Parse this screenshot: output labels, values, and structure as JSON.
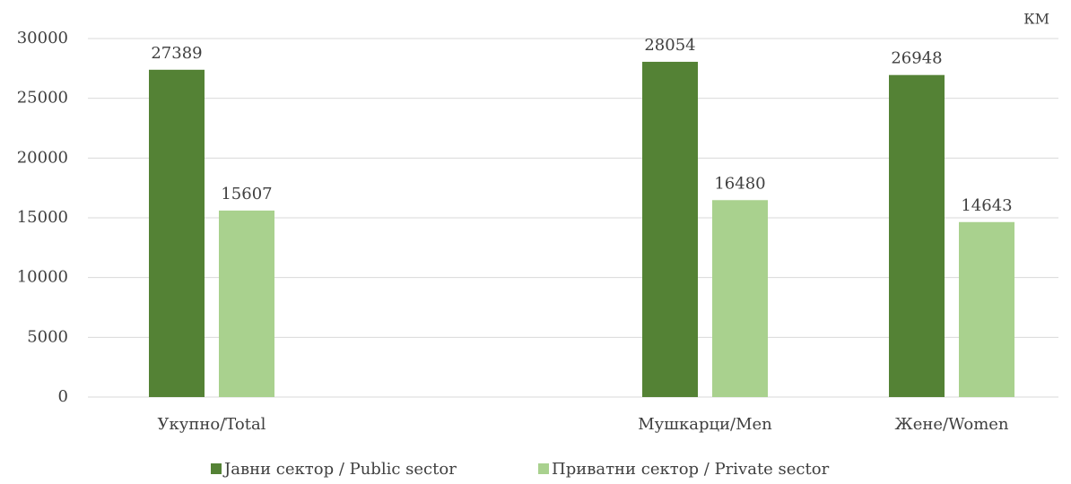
{
  "chart_data": {
    "type": "bar",
    "unit_label": "КМ",
    "categories": [
      "Укупно/Total",
      null,
      "Мушкарци/Men",
      "Жене/Women"
    ],
    "series": [
      {
        "name": "Јавни сектор / Public sector",
        "color": "#548235",
        "values": [
          27389,
          null,
          28054,
          26948
        ]
      },
      {
        "name": "Приватни сектор / Private sector",
        "color": "#a9d18e",
        "values": [
          15607,
          null,
          16480,
          14643
        ]
      }
    ],
    "ylim": [
      0,
      30000
    ],
    "yticks": [
      0,
      5000,
      10000,
      15000,
      20000,
      25000,
      30000
    ],
    "grid": true,
    "legend": "bottom"
  }
}
